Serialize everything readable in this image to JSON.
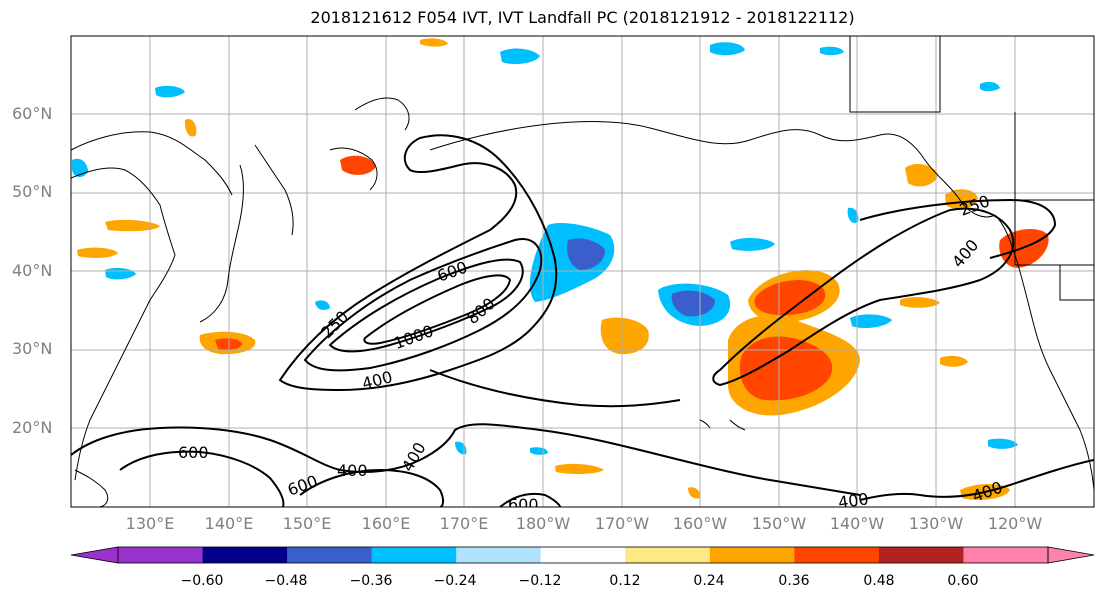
{
  "title": "2018121612 F054 IVT, IVT Landfall PC (2018121912 - 2018122112)",
  "lat_labels": [
    "60°N",
    "50°N",
    "40°N",
    "30°N",
    "20°N"
  ],
  "lon_labels": [
    "130°E",
    "140°E",
    "150°E",
    "160°E",
    "170°E",
    "180°W",
    "170°W",
    "160°W",
    "150°W",
    "140°W",
    "130°W",
    "120°W"
  ],
  "contour_labels": [
    "250",
    "600",
    "800",
    "1000",
    "400",
    "600",
    "400",
    "400",
    "600",
    "600",
    "400",
    "400",
    "400",
    "250"
  ],
  "colorbar": {
    "ticks": [
      "−0.60",
      "−0.48",
      "−0.36",
      "−0.24",
      "−0.12",
      "0.12",
      "0.24",
      "0.36",
      "0.48",
      "0.60"
    ],
    "colors": [
      "#9932cc",
      "#00008b",
      "#3a5fcd",
      "#00bfff",
      "#b0e2ff",
      "#ffffff",
      "#ffe985",
      "#ffa500",
      "#ff4500",
      "#b22222",
      "#ff82ab"
    ]
  }
}
